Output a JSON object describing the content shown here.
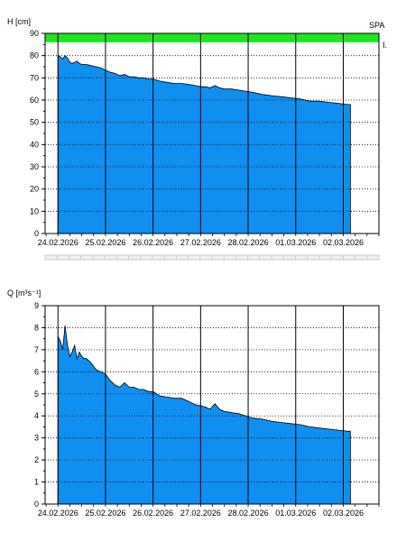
{
  "colors": {
    "fill": "#0f8fef",
    "band": "#1ee61e",
    "grid_dotted": "#000000",
    "day_line": "#000000",
    "frame": "#000000"
  },
  "chart_data": [
    {
      "id": "h",
      "type": "area",
      "ylabel": "H [cm]",
      "corner_label": "SPA",
      "corner_mark": "I.",
      "ylim": [
        0,
        90
      ],
      "yticks": [
        0,
        10,
        20,
        30,
        40,
        50,
        60,
        70,
        80,
        90
      ],
      "x_dates": [
        "24.02.2026",
        "25.02.2026",
        "26.02.2026",
        "27.02.2026",
        "28.02.2026",
        "01.03.2026",
        "02.03.2026"
      ],
      "xlim_days": [
        -0.27,
        6.75
      ],
      "grid": "dotted",
      "band": {
        "from": 86,
        "to": 90
      },
      "series": {
        "x": [
          0,
          0.05,
          0.1,
          0.15,
          0.2,
          0.25,
          0.3,
          0.35,
          0.4,
          0.45,
          0.5,
          0.55,
          0.6,
          0.7,
          0.8,
          0.9,
          1.0,
          1.1,
          1.2,
          1.3,
          1.4,
          1.5,
          1.6,
          1.7,
          1.8,
          1.9,
          2.0,
          2.15,
          2.3,
          2.45,
          2.6,
          2.75,
          2.9,
          3.0,
          3.1,
          3.2,
          3.3,
          3.4,
          3.5,
          3.65,
          3.8,
          3.95,
          4.1,
          4.3,
          4.5,
          4.7,
          4.9,
          5.1,
          5.3,
          5.5,
          5.7,
          5.9,
          6.1,
          6.15
        ],
        "y": [
          80,
          79.5,
          78.5,
          80,
          79,
          77,
          76.5,
          77,
          77.5,
          76.5,
          76,
          76,
          76,
          75.5,
          75,
          74.5,
          73.5,
          72.5,
          72,
          71,
          71.5,
          70.5,
          70.5,
          70,
          70,
          69.5,
          69.5,
          68.5,
          68,
          67.5,
          67.5,
          67,
          66.5,
          66,
          66,
          65.5,
          66.5,
          65.5,
          65,
          65,
          64.5,
          64,
          63.5,
          62.5,
          62,
          61.5,
          61,
          60.5,
          59.5,
          59.5,
          59,
          58.5,
          58,
          58
        ]
      }
    },
    {
      "id": "q",
      "type": "area",
      "ylabel": "Q [m³s⁻¹]",
      "ylim": [
        0,
        9
      ],
      "yticks": [
        0,
        1,
        2,
        3,
        4,
        5,
        6,
        7,
        8,
        9
      ],
      "x_dates": [
        "24.02.2026",
        "25.02.2026",
        "26.02.2026",
        "27.02.2026",
        "28.02.2026",
        "01.03.2026",
        "02.03.2026"
      ],
      "xlim_days": [
        -0.27,
        6.75
      ],
      "grid": "dotted",
      "series": {
        "x": [
          0,
          0.05,
          0.1,
          0.15,
          0.2,
          0.25,
          0.3,
          0.35,
          0.4,
          0.45,
          0.5,
          0.55,
          0.6,
          0.7,
          0.8,
          0.9,
          1.0,
          1.1,
          1.2,
          1.3,
          1.4,
          1.5,
          1.6,
          1.7,
          1.8,
          1.9,
          2.0,
          2.15,
          2.3,
          2.45,
          2.6,
          2.75,
          2.9,
          3.0,
          3.1,
          3.2,
          3.3,
          3.4,
          3.5,
          3.65,
          3.8,
          3.95,
          4.1,
          4.3,
          4.5,
          4.7,
          4.9,
          5.1,
          5.3,
          5.5,
          5.7,
          5.9,
          6.1,
          6.15
        ],
        "y": [
          7.6,
          7.4,
          7.0,
          8.1,
          7.2,
          6.7,
          6.9,
          7.2,
          6.6,
          6.9,
          6.7,
          6.6,
          6.6,
          6.4,
          6.1,
          6.0,
          5.9,
          5.6,
          5.4,
          5.3,
          5.5,
          5.3,
          5.3,
          5.2,
          5.2,
          5.1,
          5.1,
          4.9,
          4.85,
          4.8,
          4.8,
          4.65,
          4.5,
          4.45,
          4.4,
          4.3,
          4.55,
          4.3,
          4.2,
          4.15,
          4.1,
          4.0,
          3.9,
          3.85,
          3.75,
          3.7,
          3.65,
          3.6,
          3.5,
          3.45,
          3.4,
          3.35,
          3.3,
          3.3
        ]
      }
    }
  ]
}
